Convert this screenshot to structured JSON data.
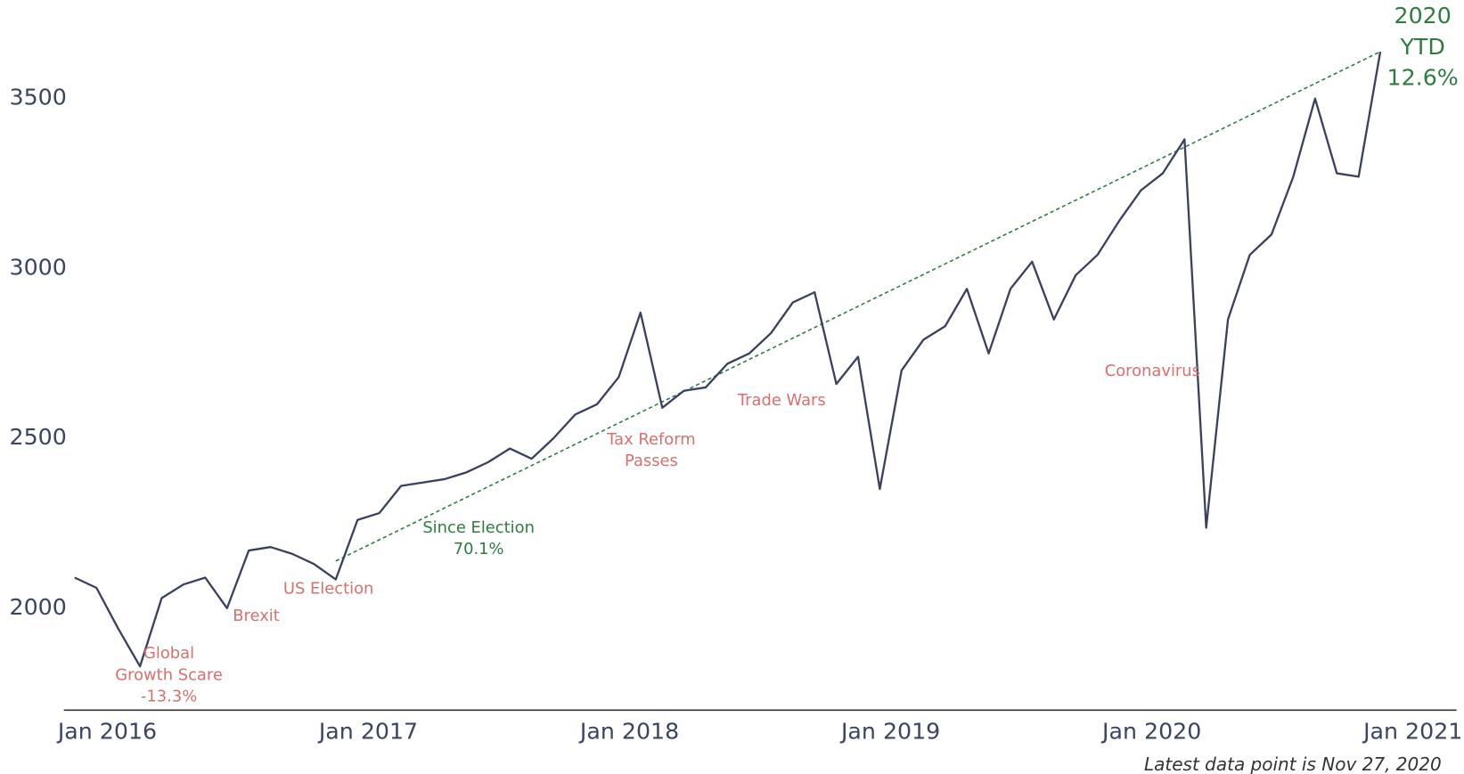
{
  "chart_data": {
    "type": "line",
    "x": [
      "2015-11",
      "2015-12",
      "2016-01",
      "2016-02",
      "2016-03",
      "2016-04",
      "2016-05",
      "2016-06",
      "2016-07",
      "2016-08",
      "2016-09",
      "2016-10",
      "2016-11",
      "2016-12",
      "2017-01",
      "2017-02",
      "2017-03",
      "2017-04",
      "2017-05",
      "2017-06",
      "2017-07",
      "2017-08",
      "2017-09",
      "2017-10",
      "2017-11",
      "2017-12",
      "2018-01",
      "2018-02",
      "2018-03",
      "2018-04",
      "2018-05",
      "2018-06",
      "2018-07",
      "2018-08",
      "2018-09",
      "2018-10",
      "2018-11",
      "2018-12",
      "2019-01",
      "2019-02",
      "2019-03",
      "2019-04",
      "2019-05",
      "2019-06",
      "2019-07",
      "2019-08",
      "2019-09",
      "2019-10",
      "2019-11",
      "2019-12",
      "2020-01",
      "2020-02",
      "2020-03",
      "2020-04",
      "2020-05",
      "2020-06",
      "2020-07",
      "2020-08",
      "2020-09",
      "2020-10",
      "2020-11"
    ],
    "series": [
      {
        "color": "#3a4060",
        "values": [
          2090,
          2060,
          1940,
          1829,
          2030,
          2070,
          2090,
          2000,
          2170,
          2180,
          2160,
          2130,
          2085,
          2260,
          2280,
          2360,
          2370,
          2380,
          2400,
          2430,
          2470,
          2440,
          2500,
          2570,
          2600,
          2680,
          2870,
          2590,
          2640,
          2650,
          2720,
          2750,
          2810,
          2900,
          2930,
          2660,
          2740,
          2351,
          2700,
          2790,
          2830,
          2940,
          2750,
          2940,
          3020,
          2850,
          2980,
          3040,
          3140,
          3230,
          3280,
          3380,
          2237,
          2850,
          3040,
          3100,
          3270,
          3500,
          3280,
          3270,
          3638
        ]
      }
    ],
    "trendline": {
      "color": "#2e7d3e",
      "x": [
        "2016-11",
        "2020-11"
      ],
      "values": [
        2139,
        3638
      ]
    },
    "annotations": [
      {
        "color": "#d9706e",
        "lines": [
          "Global",
          "Growth Scare",
          "-13.3%"
        ]
      },
      {
        "color": "#d9706e",
        "lines": [
          "Brexit"
        ]
      },
      {
        "color": "#d9706e",
        "lines": [
          "US Election"
        ]
      },
      {
        "color": "#2e7d3e",
        "lines": [
          "Since Election",
          "70.1%"
        ]
      },
      {
        "color": "#d9706e",
        "lines": [
          "Tax Reform",
          "Passes"
        ]
      },
      {
        "color": "#d9706e",
        "lines": [
          "Trade Wars"
        ]
      },
      {
        "color": "#d9706e",
        "lines": [
          "Coronavirus"
        ]
      },
      {
        "color": "#2e7d3e",
        "lines": [
          "2020",
          "YTD",
          "12.6%"
        ]
      }
    ],
    "footnote": "Latest data point is Nov 27, 2020",
    "xlim": [
      "2015-11",
      "2021-03"
    ],
    "xticks": [
      {
        "value": "2016-01",
        "label": "Jan 2016"
      },
      {
        "value": "2017-01",
        "label": "Jan 2017"
      },
      {
        "value": "2018-01",
        "label": "Jan 2018"
      },
      {
        "value": "2019-01",
        "label": "Jan 2019"
      },
      {
        "value": "2020-01",
        "label": "Jan 2020"
      },
      {
        "value": "2021-01",
        "label": "Jan 2021"
      }
    ],
    "ylim": [
      1700,
      3790
    ],
    "yticks": [
      2000,
      2500,
      3000,
      3500
    ],
    "grid": false
  }
}
